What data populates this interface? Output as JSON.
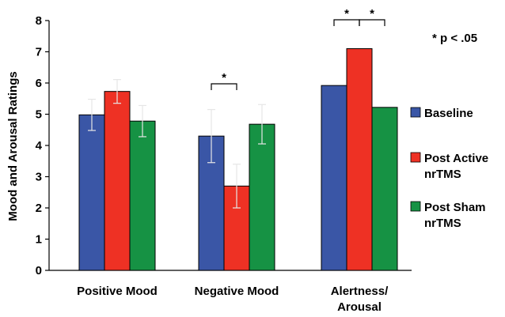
{
  "chart_data": {
    "type": "bar",
    "ylabel": "Mood and Arousal Ratings",
    "ylim": [
      0,
      8
    ],
    "yticks": [
      "0",
      "1",
      "2",
      "3",
      "4",
      "5",
      "6",
      "7",
      "8"
    ],
    "categories": [
      {
        "lines": [
          "Positive Mood"
        ]
      },
      {
        "lines": [
          "Negative Mood"
        ]
      },
      {
        "lines": [
          "Alertness/",
          "Arousal"
        ]
      }
    ],
    "series": [
      {
        "name_lines": [
          "Baseline"
        ],
        "color": "#3a56a6",
        "values": [
          4.98,
          4.3,
          5.92
        ],
        "errors": [
          0.5,
          0.85,
          null
        ]
      },
      {
        "name_lines": [
          "Post Active",
          "nrTMS"
        ],
        "color": "#ee3124",
        "values": [
          5.73,
          2.7,
          7.1
        ],
        "errors": [
          0.38,
          0.7,
          null
        ]
      },
      {
        "name_lines": [
          "Post Sham",
          "nrTMS"
        ],
        "color": "#169244",
        "values": [
          4.78,
          4.68,
          5.22
        ],
        "errors": [
          0.5,
          0.63,
          null
        ]
      }
    ],
    "significance": [
      {
        "category": 1,
        "from_series": 0,
        "to_series": 1,
        "label": "*"
      },
      {
        "category": 2,
        "from_series": 0,
        "to_series": 1,
        "label": "*"
      },
      {
        "category": 2,
        "from_series": 1,
        "to_series": 2,
        "label": "*"
      }
    ],
    "annotation": "* p < .05",
    "legend_position": "right",
    "grid": false
  }
}
